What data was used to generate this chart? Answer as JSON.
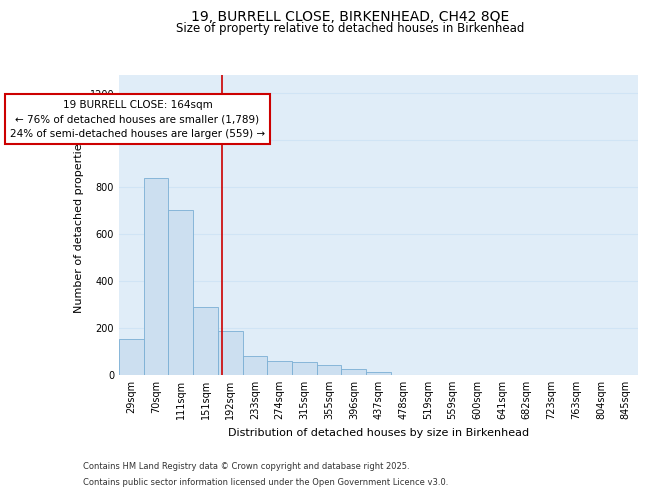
{
  "title_line1": "19, BURRELL CLOSE, BIRKENHEAD, CH42 8QE",
  "title_line2": "Size of property relative to detached houses in Birkenhead",
  "xlabel": "Distribution of detached houses by size in Birkenhead",
  "ylabel": "Number of detached properties",
  "categories": [
    "29sqm",
    "70sqm",
    "111sqm",
    "151sqm",
    "192sqm",
    "233sqm",
    "274sqm",
    "315sqm",
    "355sqm",
    "396sqm",
    "437sqm",
    "478sqm",
    "519sqm",
    "559sqm",
    "600sqm",
    "641sqm",
    "682sqm",
    "723sqm",
    "763sqm",
    "804sqm",
    "845sqm"
  ],
  "values": [
    150,
    840,
    700,
    290,
    185,
    80,
    57,
    52,
    42,
    25,
    10,
    0,
    0,
    0,
    0,
    0,
    0,
    0,
    0,
    0,
    0
  ],
  "bar_color": "#ccdff0",
  "bar_edge_color": "#7bafd4",
  "bar_linewidth": 0.6,
  "vline_pos": 3.65,
  "vline_color": "#cc0000",
  "annotation_line1": "19 BURRELL CLOSE: 164sqm",
  "annotation_line2": "← 76% of detached houses are smaller (1,789)",
  "annotation_line3": "24% of semi-detached houses are larger (559) →",
  "annotation_box_color": "#cc0000",
  "annotation_bg": "#ffffff",
  "ylim": [
    0,
    1280
  ],
  "yticks": [
    0,
    200,
    400,
    600,
    800,
    1000,
    1200
  ],
  "grid_color": "#d0e4f5",
  "background_color": "#e0edf8",
  "footer_line1": "Contains HM Land Registry data © Crown copyright and database right 2025.",
  "footer_line2": "Contains public sector information licensed under the Open Government Licence v3.0.",
  "title_fontsize": 10,
  "subtitle_fontsize": 8.5,
  "axis_label_fontsize": 8,
  "tick_fontsize": 7,
  "annotation_fontsize": 7.5,
  "footer_fontsize": 6
}
